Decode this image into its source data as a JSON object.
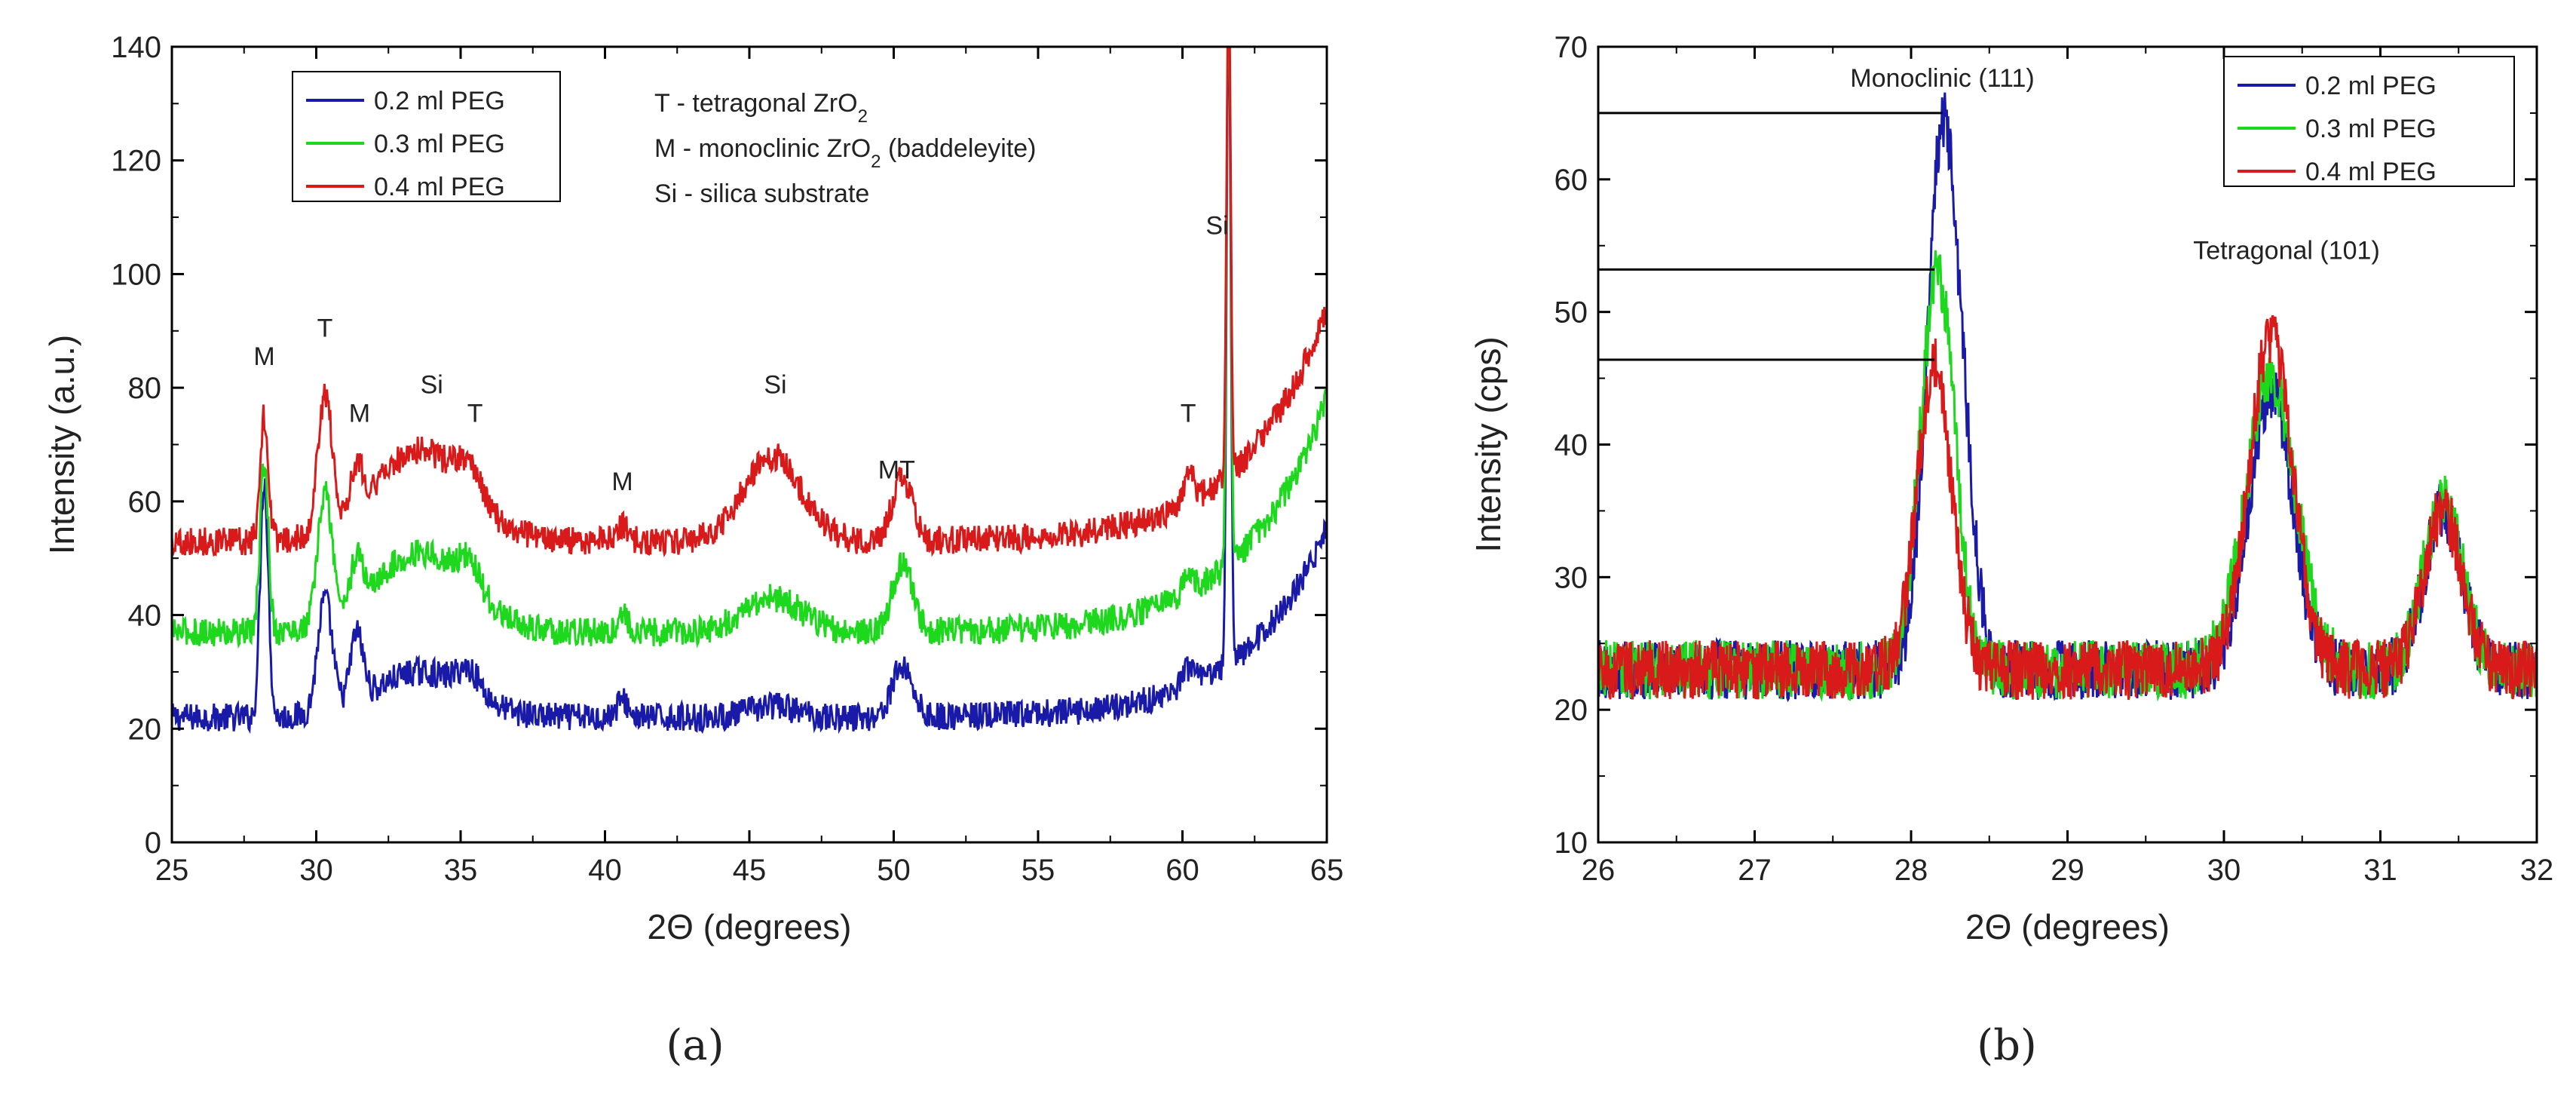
{
  "panel_a": {
    "label": "(a)"
  },
  "panel_b": {
    "label": "(b)"
  },
  "chart_data": [
    {
      "type": "line",
      "panel": "(a)",
      "xlabel": "2Θ (degrees)",
      "ylabel": "Intensity (a.u.)",
      "xlim": [
        25,
        65
      ],
      "ylim": [
        0,
        140
      ],
      "xticks": [
        25,
        30,
        35,
        40,
        45,
        50,
        55,
        60,
        65
      ],
      "yticks": [
        0,
        20,
        40,
        60,
        80,
        100,
        120,
        140
      ],
      "legend_position": "top-left",
      "series": [
        {
          "name": "0.2 ml PEG",
          "color": "#1a1aa8",
          "baseline": 22,
          "tail": 55,
          "peaks": [
            [
              28.2,
              42,
              0.14
            ],
            [
              30.3,
              20,
              0.25
            ],
            [
              31.4,
              12,
              0.22
            ],
            [
              33.6,
              8,
              1.6
            ],
            [
              35.3,
              4,
              0.4
            ],
            [
              40.6,
              3,
              0.2
            ],
            [
              45.8,
              2,
              0.8
            ],
            [
              50.3,
              9,
              0.35
            ],
            [
              60.2,
              3,
              0.2
            ],
            [
              61.6,
              118,
              0.07
            ]
          ]
        },
        {
          "name": "0.3 ml PEG",
          "color": "#1ed81e",
          "baseline": 37,
          "tail": 78,
          "peaks": [
            [
              28.2,
              30,
              0.14
            ],
            [
              30.3,
              23,
              0.25
            ],
            [
              31.4,
              8,
              0.22
            ],
            [
              33.6,
              14,
              1.6
            ],
            [
              35.3,
              5,
              0.4
            ],
            [
              40.6,
              3,
              0.2
            ],
            [
              45.8,
              6,
              1.0
            ],
            [
              50.3,
              12,
              0.35
            ],
            [
              60.2,
              4,
              0.2
            ],
            [
              61.6,
              103,
              0.07
            ]
          ]
        },
        {
          "name": "0.4 ml PEG",
          "color": "#d81a1a",
          "baseline": 53,
          "tail": 94,
          "peaks": [
            [
              28.2,
              22,
              0.14
            ],
            [
              30.3,
              24,
              0.25
            ],
            [
              31.4,
              8,
              0.22
            ],
            [
              33.6,
              16,
              1.6
            ],
            [
              35.3,
              5,
              0.4
            ],
            [
              40.6,
              3,
              0.2
            ],
            [
              45.8,
              15,
              1.0
            ],
            [
              50.3,
              11,
              0.35
            ],
            [
              60.2,
              5,
              0.2
            ],
            [
              61.6,
              88,
              0.07
            ]
          ]
        }
      ],
      "annotations": [
        {
          "text": "M",
          "x": 28.2,
          "y": 84
        },
        {
          "text": "T",
          "x": 30.3,
          "y": 89
        },
        {
          "text": "M",
          "x": 31.5,
          "y": 74
        },
        {
          "text": "Si",
          "x": 34.0,
          "y": 79
        },
        {
          "text": "T",
          "x": 35.5,
          "y": 74
        },
        {
          "text": "M",
          "x": 40.6,
          "y": 62
        },
        {
          "text": "Si",
          "x": 45.9,
          "y": 79
        },
        {
          "text": "MT",
          "x": 50.1,
          "y": 64
        },
        {
          "text": "T",
          "x": 60.2,
          "y": 74
        },
        {
          "text": "Si",
          "x": 61.2,
          "y": 107
        }
      ],
      "key_lines": [
        {
          "prefix": "T - tetragonal ZrO",
          "sub": "2",
          "suffix": ""
        },
        {
          "prefix": "M - monoclinic ZrO",
          "sub": "2",
          "suffix": " (baddeleyite)"
        },
        {
          "prefix": "Si - silica substrate",
          "sub": "",
          "suffix": ""
        }
      ]
    },
    {
      "type": "line",
      "panel": "(b)",
      "xlabel": "2Θ (degrees)",
      "ylabel": "Intensity (cps)",
      "xlim": [
        26,
        32
      ],
      "ylim": [
        10,
        70
      ],
      "xticks": [
        26,
        27,
        28,
        29,
        30,
        31,
        32
      ],
      "yticks": [
        10,
        20,
        30,
        40,
        50,
        60,
        70
      ],
      "legend_position": "top-right",
      "series": [
        {
          "name": "0.2 ml PEG",
          "color": "#1a1aa8",
          "baseline": 23,
          "peaks": [
            [
              28.2,
              40,
              0.1
            ],
            [
              28.35,
              8,
              0.08
            ],
            [
              30.3,
              21,
              0.14
            ],
            [
              31.4,
              12,
              0.12
            ]
          ]
        },
        {
          "name": "0.3 ml PEG",
          "color": "#1ed81e",
          "baseline": 23,
          "peaks": [
            [
              28.17,
              30,
              0.11
            ],
            [
              30.3,
              22,
              0.16
            ],
            [
              31.4,
              13,
              0.12
            ]
          ]
        },
        {
          "name": "0.4 ml PEG",
          "color": "#d81a1a",
          "baseline": 23,
          "peaks": [
            [
              28.15,
              23,
              0.11
            ],
            [
              30.3,
              25,
              0.14
            ],
            [
              31.4,
              12,
              0.12
            ]
          ]
        }
      ],
      "reference_lines": [
        {
          "y": 65,
          "x_end": 28.2
        },
        {
          "y": 53.2,
          "x_end": 28.15
        },
        {
          "y": 46.4,
          "x_end": 28.15
        }
      ],
      "annotations": [
        {
          "text": "Monoclinic (111)",
          "x": 28.2,
          "y": 67
        },
        {
          "text": "Tetragonal (101)",
          "x": 30.4,
          "y": 54
        }
      ]
    }
  ]
}
